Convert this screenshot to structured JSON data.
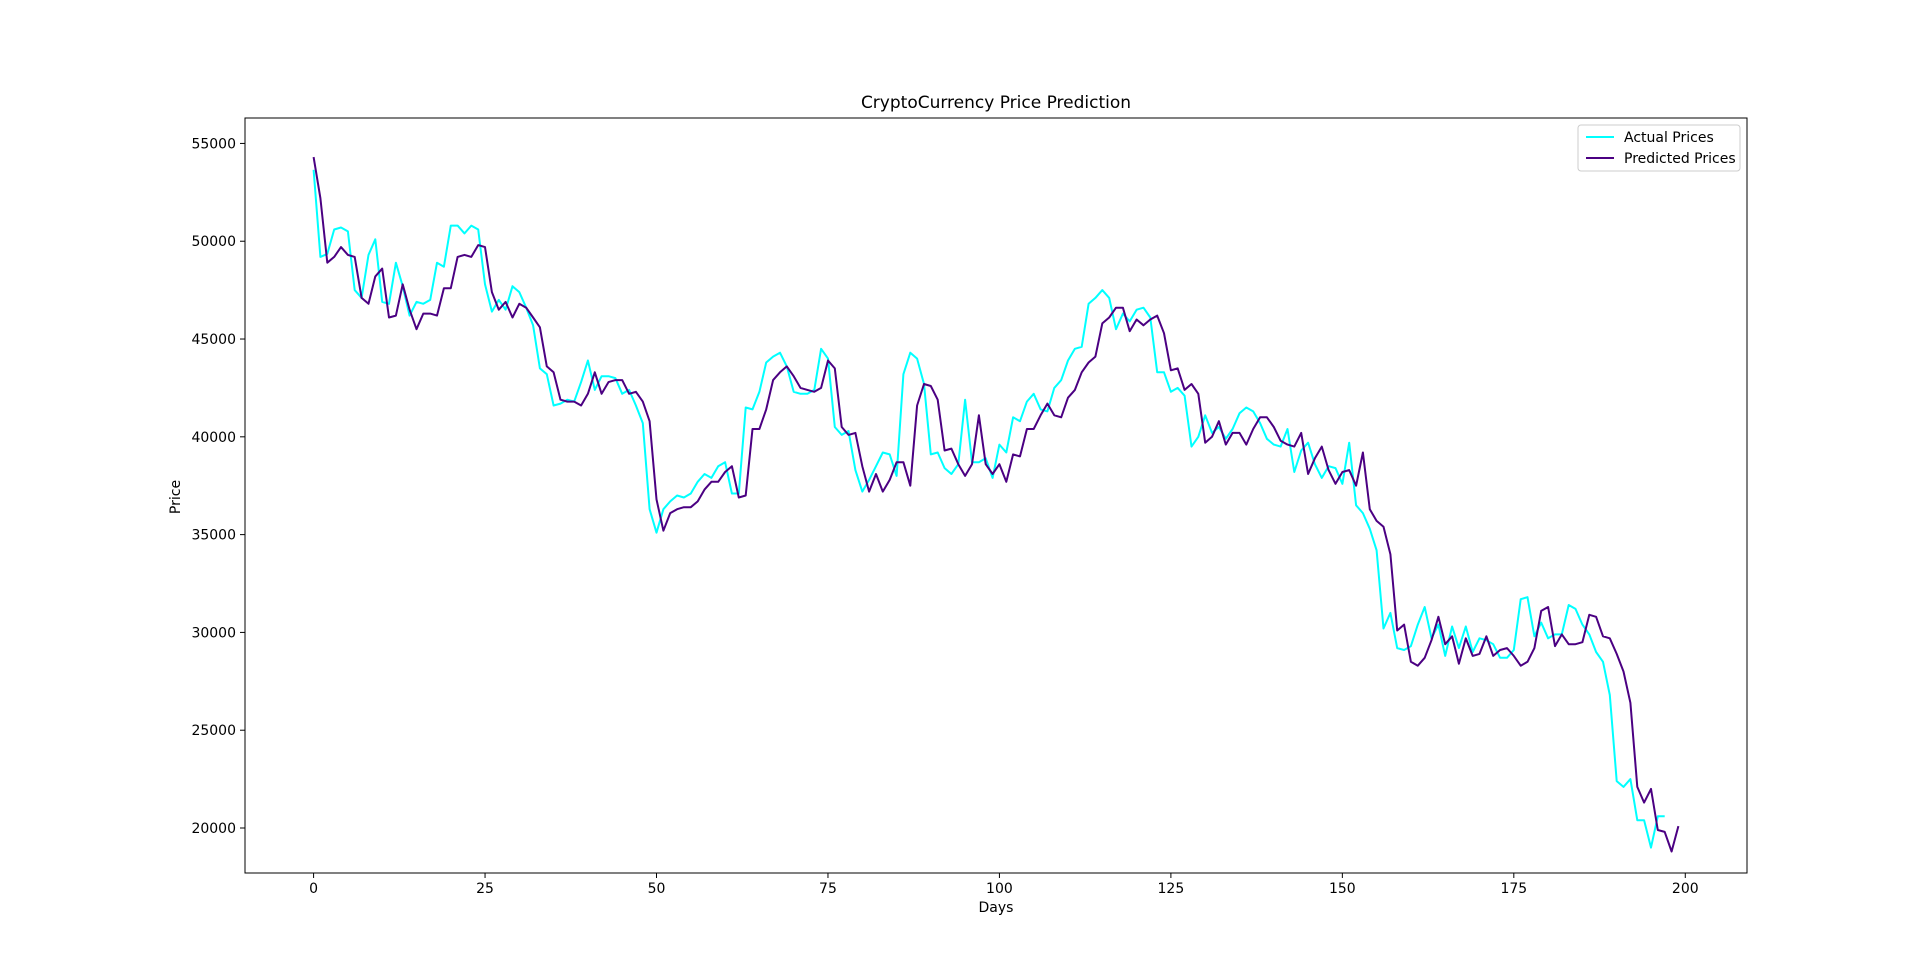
{
  "chart_data": {
    "type": "line",
    "title": "CryptoCurrency Price Prediction",
    "xlabel": "Days",
    "ylabel": "Price",
    "xlim": [
      -10,
      209
    ],
    "ylim": [
      17700,
      56300
    ],
    "xticks": [
      0,
      25,
      50,
      75,
      100,
      125,
      150,
      175,
      200
    ],
    "yticks": [
      20000,
      25000,
      30000,
      35000,
      40000,
      45000,
      50000,
      55000
    ],
    "grid": false,
    "legend": "top-right",
    "series": [
      {
        "name": "Actual Prices",
        "color": "#00ffff",
        "values": [
          53650,
          49200,
          49350,
          50600,
          50700,
          50500,
          47500,
          47100,
          49300,
          50100,
          46900,
          46800,
          48900,
          47700,
          46200,
          46900,
          46800,
          47000,
          48900,
          48700,
          50800,
          50800,
          50400,
          50800,
          50600,
          47800,
          46400,
          47000,
          46500,
          47700,
          47400,
          46600,
          45700,
          43500,
          43200,
          41600,
          41700,
          41900,
          41800,
          42800,
          43900,
          42400,
          43100,
          43100,
          43000,
          42200,
          42400,
          41600,
          40700,
          36300,
          35100,
          36300,
          36700,
          37000,
          36900,
          37100,
          37700,
          38100,
          37900,
          38500,
          38700,
          37100,
          37100,
          41500,
          41400,
          42300,
          43800,
          44100,
          44300,
          43600,
          42300,
          42200,
          42200,
          42400,
          44500,
          44000,
          40500,
          40100,
          40300,
          38300,
          37200,
          37800,
          38500,
          39200,
          39100,
          38000,
          43200,
          44300,
          44000,
          42700,
          39100,
          39200,
          38400,
          38100,
          38600,
          41900,
          38700,
          38700,
          38900,
          37900,
          39600,
          39200,
          41000,
          40800,
          41800,
          42200,
          41400,
          41300,
          42500,
          42900,
          43900,
          44500,
          44600,
          46800,
          47100,
          47500,
          47100,
          45500,
          46300,
          45900,
          46500,
          46600,
          46100,
          43300,
          43300,
          42300,
          42500,
          42100,
          39500,
          40000,
          41100,
          40200,
          40500,
          39900,
          40400,
          41200,
          41500,
          41300,
          40700,
          39900,
          39600,
          39500,
          40400,
          38200,
          39300,
          39700,
          38600,
          37900,
          38500,
          38400,
          37600,
          39700,
          36500,
          36100,
          35300,
          34200,
          30200,
          31000,
          29200,
          29100,
          29300,
          30400,
          31300,
          29700,
          30400,
          28800,
          30300,
          29200,
          30300,
          29000,
          29700,
          29600,
          29400,
          28700,
          28700,
          29100,
          31700,
          31800,
          29800,
          30500,
          29700,
          29900,
          29900,
          31400,
          31200,
          30400,
          29900,
          29000,
          28500,
          26800,
          22400,
          22100,
          22500,
          20400,
          20400,
          19000,
          20600,
          20600
        ]
      },
      {
        "name": "Predicted Prices",
        "color": "#4b0082",
        "values": [
          54300,
          52200,
          48900,
          49200,
          49700,
          49300,
          49200,
          47100,
          46800,
          48200,
          48600,
          46100,
          46200,
          47800,
          46500,
          45500,
          46300,
          46300,
          46200,
          47600,
          47600,
          49200,
          49300,
          49200,
          49800,
          49700,
          47400,
          46500,
          46900,
          46100,
          46800,
          46600,
          46100,
          45600,
          43600,
          43300,
          41900,
          41800,
          41800,
          41600,
          42200,
          43300,
          42200,
          42800,
          42900,
          42900,
          42200,
          42300,
          41800,
          40800,
          36800,
          35200,
          36100,
          36300,
          36400,
          36400,
          36700,
          37300,
          37700,
          37700,
          38200,
          38500,
          36900,
          37000,
          40400,
          40400,
          41400,
          42900,
          43300,
          43600,
          43100,
          42500,
          42400,
          42300,
          42500,
          43900,
          43500,
          40500,
          40100,
          40200,
          38500,
          37200,
          38100,
          37200,
          37800,
          38700,
          38700,
          37500,
          41600,
          42700,
          42600,
          41900,
          39300,
          39400,
          38600,
          38000,
          38600,
          41100,
          38600,
          38100,
          38600,
          37700,
          39100,
          39000,
          40400,
          40400,
          41100,
          41700,
          41100,
          41000,
          42000,
          42400,
          43300,
          43800,
          44100,
          45800,
          46100,
          46600,
          46600,
          45400,
          46000,
          45700,
          46000,
          46200,
          45300,
          43400,
          43500,
          42400,
          42700,
          42200,
          39700,
          40000,
          40800,
          39600,
          40200,
          40200,
          39600,
          40400,
          41000,
          41000,
          40500,
          39800,
          39600,
          39500,
          40200,
          38100,
          38900,
          39500,
          38300,
          37600,
          38200,
          38300,
          37500,
          39200,
          36300,
          35700,
          35400,
          34000,
          30100,
          30400,
          28500,
          28300,
          28700,
          29600,
          30800,
          29400,
          29800,
          28400,
          29700,
          28800,
          28900,
          29800,
          28800,
          29100,
          29200,
          28800,
          28300,
          28500,
          29200,
          31100,
          31300,
          29300,
          29900,
          29400,
          29400,
          29500,
          30900,
          30800,
          29800,
          29700,
          28900,
          28000,
          26400,
          22100,
          21300,
          22000,
          19900,
          19800,
          18800,
          20100
        ]
      }
    ]
  }
}
